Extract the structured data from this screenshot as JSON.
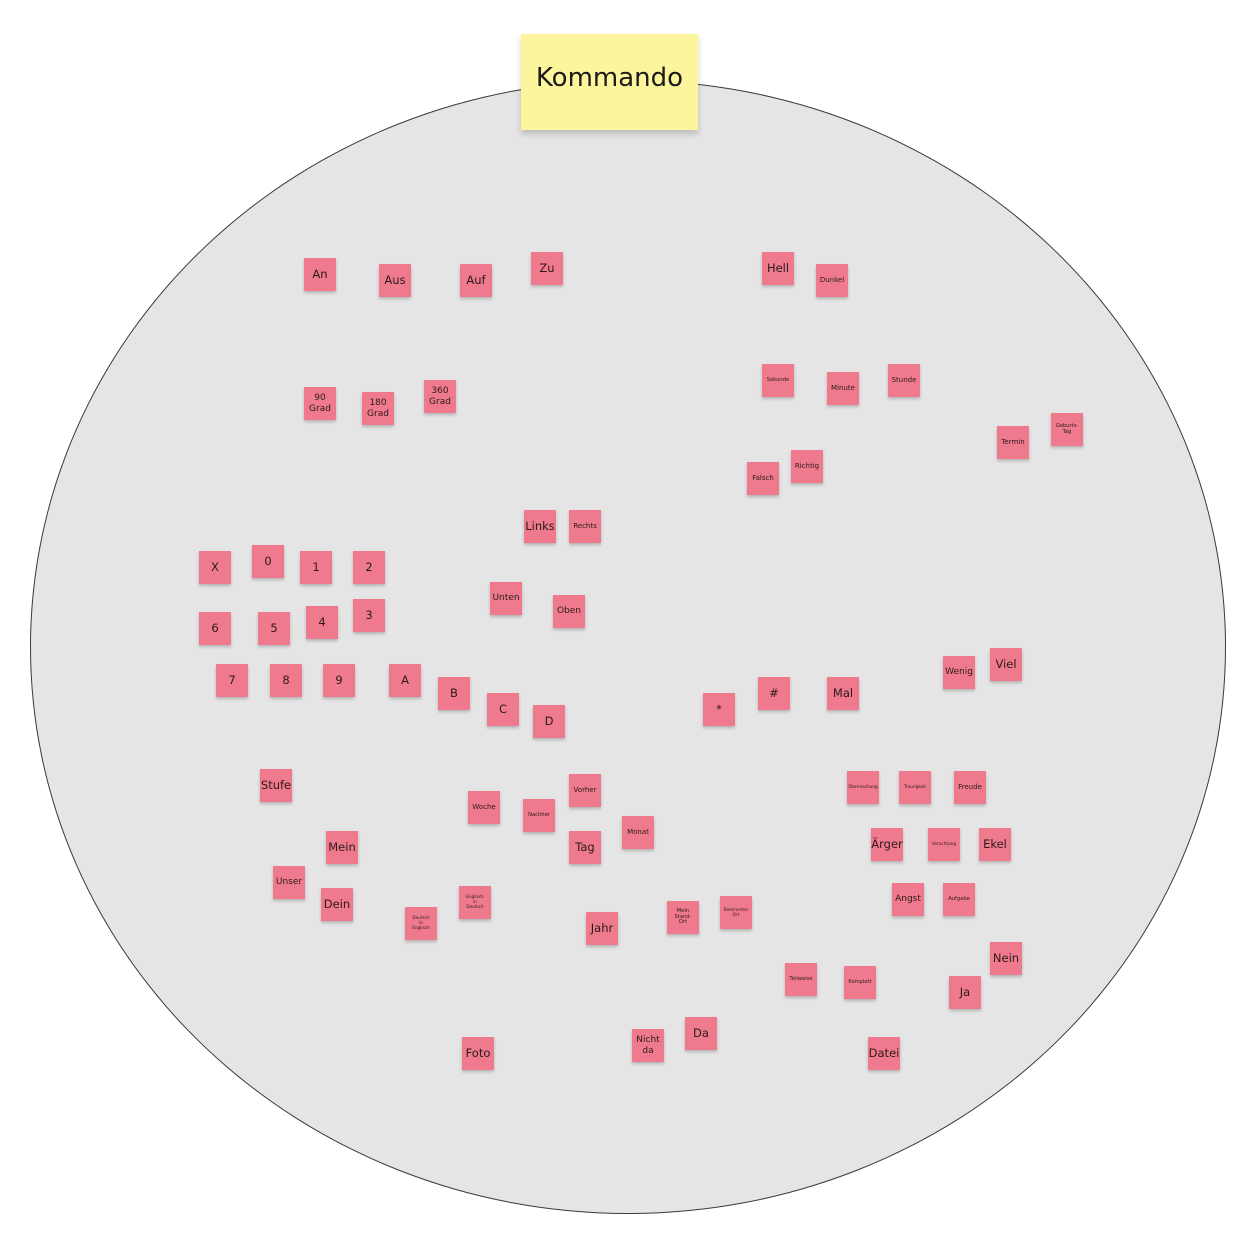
{
  "title": "Kommando",
  "notes": {
    "an": "An",
    "aus": "Aus",
    "auf": "Auf",
    "zu": "Zu",
    "hell": "Hell",
    "dunkel": "Dunkel",
    "grad90": "90\nGrad",
    "grad180": "180\nGrad",
    "grad360": "360\nGrad",
    "sekunde": "Sekunde",
    "minute": "Minute",
    "stunde": "Stunde",
    "termin": "Termin",
    "geburtstag": "Geburts-\nTag",
    "falsch": "Falsch",
    "richtig": "Richtig",
    "links": "Links",
    "rechts": "Rechts",
    "x": "X",
    "n0": "0",
    "n1": "1",
    "n2": "2",
    "n6": "6",
    "n5": "5",
    "n4": "4",
    "n3": "3",
    "unten": "Unten",
    "oben": "Oben",
    "n7": "7",
    "n8": "8",
    "n9": "9",
    "a": "A",
    "b": "B",
    "c": "C",
    "d": "D",
    "stern": "*",
    "raute": "#",
    "mal": "Mal",
    "wenig": "Wenig",
    "viel": "Viel",
    "stufe": "Stufe",
    "woche": "Woche",
    "nachher": "Nachher",
    "vorher": "Vorher",
    "monat": "Monat",
    "tag": "Tag",
    "ueberraschung": "Überraschung",
    "traurigkeit": "Traurigkeit",
    "freude": "Freude",
    "aerger": "Ärger",
    "verachtung": "Verachtung",
    "ekel": "Ekel",
    "mein": "Mein",
    "unser": "Unser",
    "dein": "Dein",
    "deutsch_englisch": "Deutsch\nin\nEnglisch",
    "englisch_deutsch": "Englisch\nin\nDeutsch",
    "jahr": "Jahr",
    "mein_standort": "Mein\nStand-\nOrt",
    "bestimmter_ort": "Bestimmter\nOrt",
    "angst": "Angst",
    "aufgabe": "Aufgabe",
    "teilweise": "Teilweise",
    "komplett": "Komplett",
    "nein": "Nein",
    "ja": "Ja",
    "foto": "Foto",
    "nicht_da": "Nicht\nda",
    "da": "Da",
    "datei": "Datei"
  }
}
